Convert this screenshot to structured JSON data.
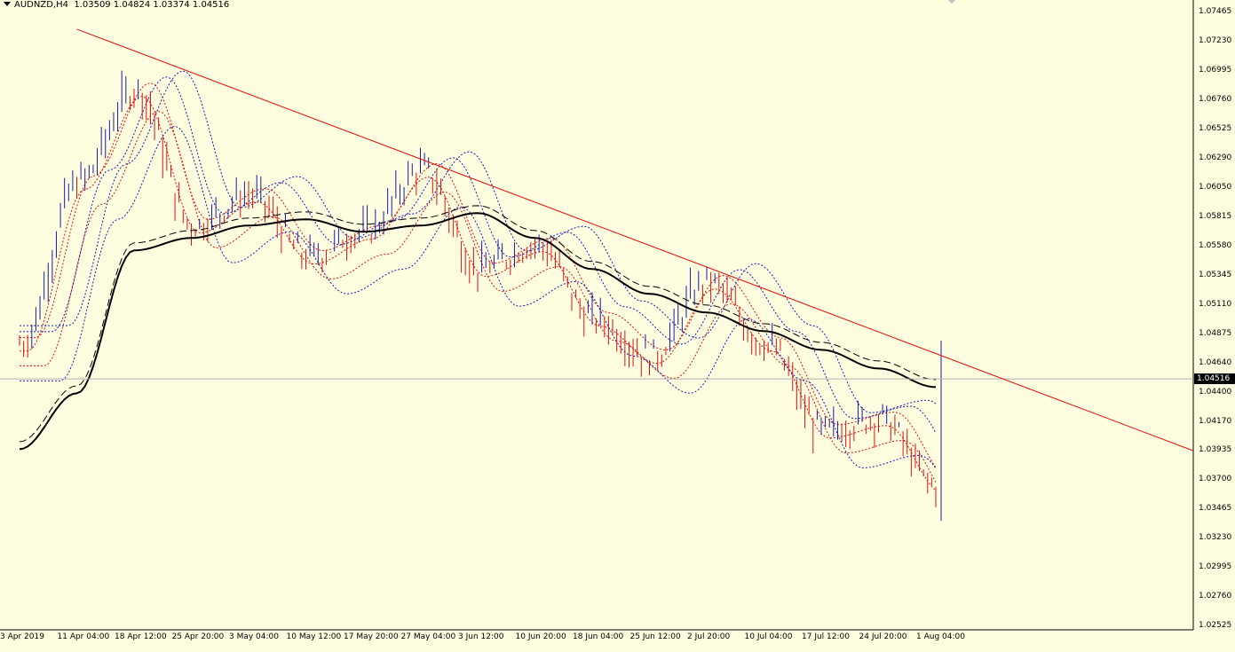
{
  "header": {
    "symbol": "AUDNZD,H4",
    "ohlc": "1.03509 1.04824 1.03374 1.04516"
  },
  "current_price": "1.04516",
  "y_axis": {
    "ticks": [
      "1.07465",
      "1.07230",
      "1.06995",
      "1.06760",
      "1.06525",
      "1.06290",
      "1.06050",
      "1.05815",
      "1.05580",
      "1.05345",
      "1.05110",
      "1.04875",
      "1.04640",
      "1.04400",
      "1.04170",
      "1.03935",
      "1.03700",
      "1.03465",
      "1.03230",
      "1.02995",
      "1.02760",
      "1.02525"
    ]
  },
  "x_axis": {
    "ticks": [
      "3 Apr 2019",
      "11 Apr 04:00",
      "18 Apr 12:00",
      "25 Apr 20:00",
      "3 May 04:00",
      "10 May 12:00",
      "17 May 20:00",
      "27 May 04:00",
      "3 Jun 12:00",
      "10 Jun 20:00",
      "18 Jun 04:00",
      "25 Jun 12:00",
      "2 Jul 20:00",
      "10 Jul 04:00",
      "17 Jul 12:00",
      "24 Jul 20:00",
      "1 Aug 04:00"
    ]
  },
  "colors": {
    "background": "#fffde0",
    "bull": "#1a1aa8",
    "bear": "#e01010",
    "trendline": "#e01010",
    "ma": "#000000",
    "grid_price_line": "#b0b0b0"
  },
  "chart_data": {
    "type": "line",
    "title": "AUDNZD,H4",
    "xlabel": "",
    "ylabel": "",
    "ylim": [
      1.02525,
      1.07465
    ],
    "x": [
      "3 Apr 2019",
      "11 Apr 04:00",
      "18 Apr 12:00",
      "25 Apr 20:00",
      "3 May 04:00",
      "10 May 12:00",
      "17 May 20:00",
      "27 May 04:00",
      "3 Jun 12:00",
      "10 Jun 20:00",
      "18 Jun 04:00",
      "25 Jun 12:00",
      "2 Jul 20:00",
      "10 Jul 04:00",
      "17 Jul 12:00",
      "24 Jul 20:00",
      "1 Aug 04:00"
    ],
    "series": [
      {
        "values": [
          1.048,
          1.061,
          1.0685,
          1.0575,
          1.06,
          1.055,
          1.057,
          1.062,
          1.054,
          1.056,
          1.05,
          1.047,
          1.053,
          1.048,
          1.041,
          1.042,
          1.0365
        ]
      },
      {
        "values": [
          1.0395,
          1.044,
          1.0555,
          1.0565,
          1.0575,
          1.058,
          1.057,
          1.0575,
          1.0585,
          1.0565,
          1.054,
          1.052,
          1.0505,
          1.049,
          1.0475,
          1.046,
          1.0445
        ]
      }
    ],
    "trendline": {
      "start": [
        "11 Apr 04:00",
        1.0733
      ],
      "end": [
        "1 Aug 04:00",
        1.0472
      ]
    },
    "last_candle": {
      "open": 1.03509,
      "high": 1.04824,
      "low": 1.03374,
      "close": 1.04516
    }
  }
}
